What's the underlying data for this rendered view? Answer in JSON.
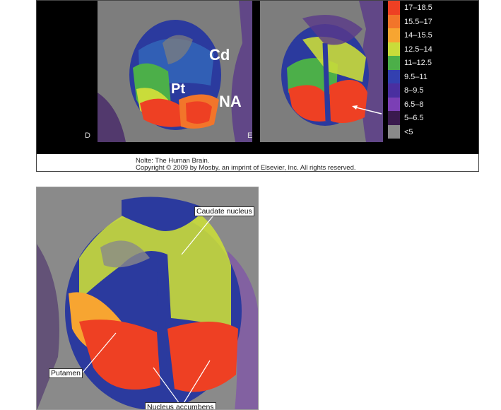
{
  "top_figure": {
    "panel_d": {
      "letter": "D",
      "labels": {
        "cd": "Cd",
        "pt": "Pt",
        "na": "NA"
      }
    },
    "panel_e": {
      "letter": "E"
    },
    "legend": [
      {
        "label": "17–18.5",
        "color": "#ee4023"
      },
      {
        "label": "15.5–17",
        "color": "#f2752a"
      },
      {
        "label": "14–15.5",
        "color": "#f7a531"
      },
      {
        "label": "12.5–14",
        "color": "#c9dc3a"
      },
      {
        "label": "11–12.5",
        "color": "#4caf49"
      },
      {
        "label": "9.5–11",
        "color": "#3340b0"
      },
      {
        "label": "8–9.5",
        "color": "#4a2fa0"
      },
      {
        "label": "6.5–8",
        "color": "#7b3fb5"
      },
      {
        "label": "5–6.5",
        "color": "#3a1a4e"
      },
      {
        "label": "<5",
        "color": "#8a8a8a"
      }
    ],
    "caption": {
      "line1": "Nolte: The Human Brain.",
      "line2": "Copyright © 2009 by Mosby, an imprint of Elsevier, Inc. All rights reserved."
    }
  },
  "bottom_figure": {
    "callouts": {
      "caudate": "Caudate nucleus",
      "putamen": "Putamen",
      "accumbens": "Nucleus accumbens"
    }
  }
}
